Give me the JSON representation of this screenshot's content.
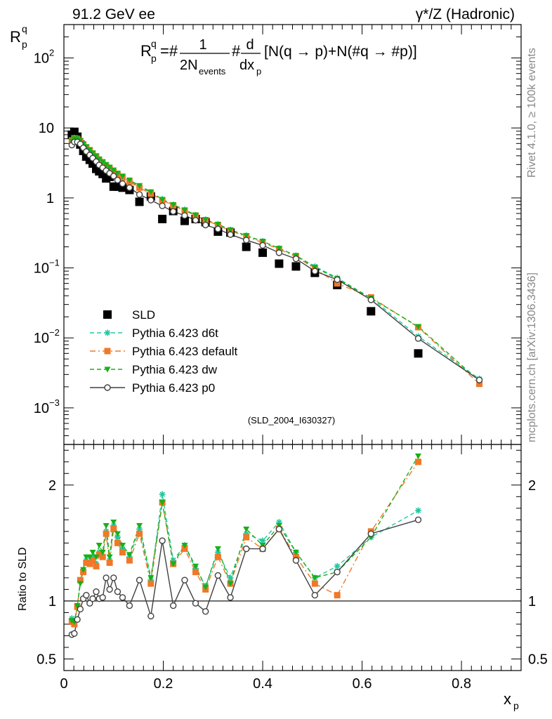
{
  "header": {
    "left_title": "91.2 GeV ee",
    "right_title": "γ*/Z (Hadronic)"
  },
  "formula": {
    "prefix": "R",
    "prefix_sup": "q",
    "prefix_sub": "p",
    "eq": "=#",
    "frac1_num": "1",
    "frac1_den": "2N",
    "frac1_den_sub": "events",
    "hash": "#",
    "frac2_num": "d",
    "frac2_den": "dx",
    "frac2_den_sub": "p",
    "tail": "[N(q →  p)+N(#q →  #p)]"
  },
  "side_notes": {
    "top": "Rivet 4.1.0, ≥ 100k events",
    "bottom": "mcplots.cern.ch [arXiv:1306.3436]"
  },
  "analysis_tag": "(SLD_2004_I630327)",
  "chart_data": [
    {
      "type": "scatter",
      "yscale": "log",
      "ylabel": "R",
      "ylabel_sup": "q",
      "ylabel_sub": "p",
      "xlim": [
        0,
        0.92
      ],
      "ylim": [
        0.0003,
        300
      ],
      "ytick_labels": [
        {
          "value": 100,
          "base": "10",
          "exp": "2"
        },
        {
          "value": 10,
          "base": "10",
          "exp": ""
        },
        {
          "value": 1,
          "base": "1",
          "exp": ""
        },
        {
          "value": 0.1,
          "base": "10",
          "exp": "−1"
        },
        {
          "value": 0.01,
          "base": "10",
          "exp": "−2"
        },
        {
          "value": 0.001,
          "base": "10",
          "exp": "−3"
        }
      ],
      "x": [
        0.016,
        0.021,
        0.027,
        0.033,
        0.039,
        0.045,
        0.052,
        0.058,
        0.065,
        0.071,
        0.078,
        0.085,
        0.092,
        0.1,
        0.108,
        0.118,
        0.132,
        0.152,
        0.175,
        0.198,
        0.22,
        0.243,
        0.265,
        0.285,
        0.31,
        0.335,
        0.367,
        0.4,
        0.433,
        0.467,
        0.505,
        0.55,
        0.618,
        0.713,
        0.836
      ],
      "series": [
        {
          "name": "SLD",
          "color": "#000000",
          "marker": "square",
          "line": "none",
          "values": [
            8.0,
            8.8,
            7.5,
            5.8,
            4.7,
            3.9,
            3.5,
            3.1,
            2.6,
            2.4,
            2.2,
            1.9,
            2.0,
            1.45,
            1.45,
            1.4,
            1.3,
            0.88,
            1.05,
            0.5,
            0.65,
            0.47,
            0.5,
            0.45,
            0.33,
            0.32,
            0.2,
            0.165,
            0.115,
            0.105,
            0.085,
            0.057,
            0.024,
            0.006,
            null
          ]
        },
        {
          "name": "Pythia 6.423 d6t",
          "color": "#20c8a0",
          "marker": "star",
          "line": "dashed",
          "values": [
            6.8,
            7.2,
            7.1,
            6.6,
            5.9,
            5.3,
            4.8,
            4.3,
            3.9,
            3.5,
            3.2,
            2.9,
            2.7,
            2.4,
            2.2,
            2.0,
            1.75,
            1.45,
            1.2,
            0.96,
            0.8,
            0.68,
            0.57,
            0.49,
            0.42,
            0.35,
            0.29,
            0.24,
            0.19,
            0.15,
            0.105,
            0.072,
            0.037,
            0.0105,
            0.0026
          ]
        },
        {
          "name": "Pythia 6.423 default",
          "color": "#f07828",
          "marker": "square",
          "line": "dashdot",
          "values": [
            6.6,
            7.1,
            7.0,
            6.5,
            5.8,
            5.2,
            4.7,
            4.2,
            3.8,
            3.4,
            3.1,
            2.8,
            2.6,
            2.35,
            2.15,
            1.95,
            1.7,
            1.4,
            1.15,
            0.93,
            0.78,
            0.66,
            0.56,
            0.48,
            0.41,
            0.34,
            0.28,
            0.23,
            0.185,
            0.145,
            0.098,
            0.06,
            0.038,
            0.0142,
            0.0022
          ]
        },
        {
          "name": "Pythia 6.423 dw",
          "color": "#18b018",
          "marker": "triangle-down",
          "line": "dashed",
          "values": [
            6.5,
            7.0,
            7.1,
            6.6,
            5.9,
            5.4,
            4.9,
            4.4,
            4.0,
            3.6,
            3.3,
            3.0,
            2.75,
            2.5,
            2.25,
            2.05,
            1.8,
            1.5,
            1.22,
            0.95,
            0.8,
            0.67,
            0.57,
            0.49,
            0.42,
            0.35,
            0.29,
            0.24,
            0.19,
            0.15,
            0.102,
            0.07,
            0.037,
            0.0145,
            0.0024
          ]
        },
        {
          "name": "Pythia 6.423 p0",
          "color": "#404040",
          "marker": "circle-open",
          "line": "solid",
          "values": [
            5.7,
            6.3,
            6.3,
            5.9,
            5.2,
            4.6,
            4.1,
            3.7,
            3.3,
            2.95,
            2.7,
            2.45,
            2.25,
            2.05,
            1.8,
            1.6,
            1.4,
            1.12,
            0.93,
            0.77,
            0.64,
            0.56,
            0.48,
            0.41,
            0.36,
            0.3,
            0.25,
            0.21,
            0.165,
            0.135,
            0.09,
            0.068,
            0.035,
            0.0098,
            0.0025
          ]
        }
      ],
      "legend_location": "lower-left",
      "legend": [
        "SLD",
        "Pythia 6.423 d6t",
        "Pythia 6.423 default",
        "Pythia 6.423 dw",
        "Pythia 6.423 p0"
      ]
    },
    {
      "type": "line",
      "ylabel": "Ratio to SLD",
      "xlabel": "x",
      "xlabel_sub": "p",
      "xlim": [
        0,
        0.92
      ],
      "ylim": [
        0.4,
        2.35
      ],
      "yticks": [
        0.5,
        1,
        2
      ],
      "ytick_labels": [
        "0.5",
        "1",
        "2"
      ],
      "xticks": [
        0,
        0.2,
        0.4,
        0.6,
        0.8
      ],
      "xtick_labels": [
        "0",
        "0.2",
        "0.4",
        "0.6",
        "0.8"
      ],
      "reference_line": 1.0,
      "x": [
        0.016,
        0.021,
        0.027,
        0.033,
        0.039,
        0.045,
        0.052,
        0.058,
        0.065,
        0.071,
        0.078,
        0.085,
        0.092,
        0.1,
        0.108,
        0.118,
        0.132,
        0.152,
        0.175,
        0.198,
        0.22,
        0.243,
        0.265,
        0.285,
        0.31,
        0.335,
        0.367,
        0.4,
        0.433,
        0.467,
        0.505,
        0.55,
        0.618,
        0.713
      ],
      "series": [
        {
          "name": "Pythia 6.423 d6t",
          "color": "#20c8a0",
          "marker": "star",
          "line": "dashed",
          "values": [
            0.85,
            0.82,
            0.95,
            1.18,
            1.27,
            1.35,
            1.33,
            1.38,
            1.32,
            1.42,
            1.38,
            1.6,
            1.35,
            1.65,
            1.55,
            1.45,
            1.38,
            1.62,
            1.18,
            1.92,
            1.35,
            1.48,
            1.28,
            1.13,
            1.42,
            1.2,
            1.58,
            1.52,
            1.68,
            1.42,
            1.2,
            1.3,
            1.55,
            1.78
          ]
        },
        {
          "name": "Pythia 6.423 default",
          "color": "#f07828",
          "marker": "square",
          "line": "dashdot",
          "values": [
            0.82,
            0.8,
            0.95,
            1.18,
            1.25,
            1.33,
            1.32,
            1.35,
            1.3,
            1.4,
            1.38,
            1.58,
            1.33,
            1.62,
            1.5,
            1.42,
            1.35,
            1.58,
            1.15,
            1.85,
            1.32,
            1.45,
            1.25,
            1.1,
            1.38,
            1.15,
            1.55,
            1.45,
            1.62,
            1.38,
            1.15,
            1.05,
            1.6,
            2.2
          ]
        },
        {
          "name": "Pythia 6.423 dw",
          "color": "#18b018",
          "marker": "triangle-down",
          "line": "dashed",
          "values": [
            0.83,
            0.82,
            0.96,
            1.15,
            1.27,
            1.38,
            1.38,
            1.42,
            1.38,
            1.48,
            1.42,
            1.65,
            1.38,
            1.68,
            1.58,
            1.48,
            1.4,
            1.65,
            1.2,
            1.85,
            1.32,
            1.48,
            1.3,
            1.12,
            1.45,
            1.15,
            1.62,
            1.48,
            1.65,
            1.42,
            1.2,
            1.25,
            1.55,
            2.25
          ]
        },
        {
          "name": "Pythia 6.423 p0",
          "color": "#404040",
          "marker": "circle-open",
          "line": "solid",
          "values": [
            0.71,
            0.72,
            0.84,
            0.93,
            1.02,
            1.05,
            0.98,
            1.02,
            1.08,
            1.02,
            1.03,
            1.2,
            1.1,
            1.2,
            1.08,
            1.03,
            0.96,
            1.18,
            0.87,
            1.52,
            0.96,
            1.18,
            0.98,
            0.91,
            1.22,
            1.03,
            1.45,
            1.45,
            1.62,
            1.35,
            1.05,
            1.25,
            1.58,
            1.7
          ]
        }
      ]
    }
  ]
}
